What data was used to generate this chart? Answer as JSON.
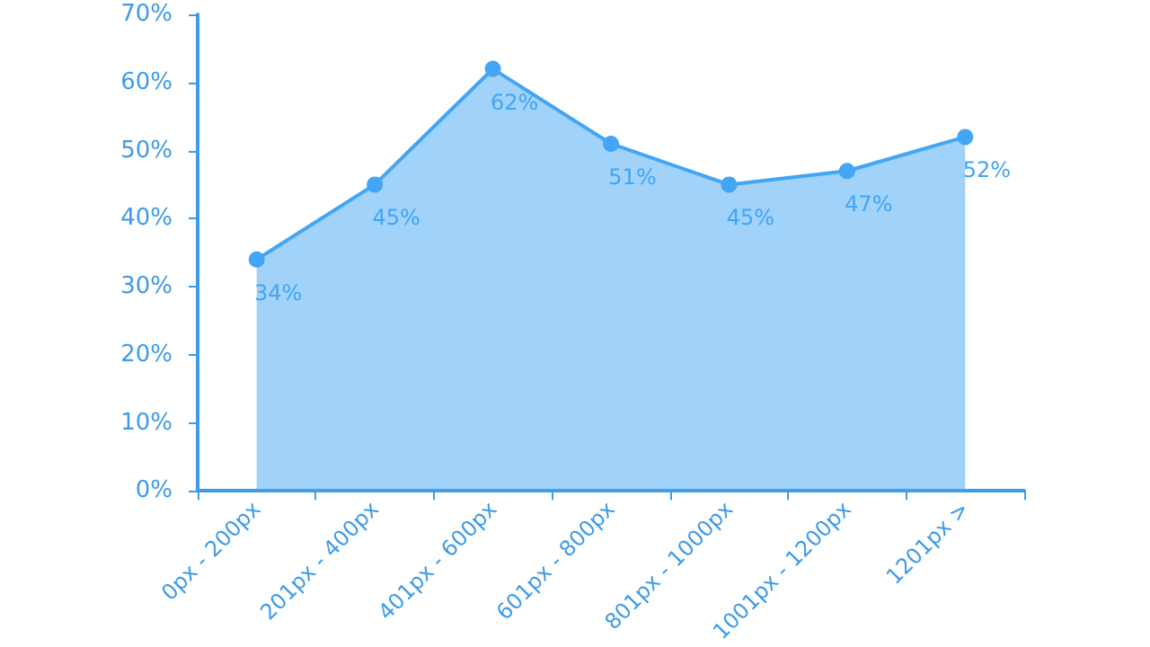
{
  "chart_data": {
    "type": "area",
    "categories": [
      "0px - 200px",
      "201px - 400px",
      "401px - 600px",
      "601px - 800px",
      "801px - 1000px",
      "1001px - 1200px",
      "1201px >"
    ],
    "series": [
      {
        "color": "#42a5f5",
        "values": [
          34,
          45,
          62,
          51,
          45,
          47,
          52
        ],
        "value_labels": [
          "34%",
          "45%",
          "62%",
          "51%",
          "45%",
          "47%",
          "52%"
        ]
      }
    ],
    "ylim": [
      0,
      70
    ],
    "yticks": [
      {
        "value": 0,
        "label": "0%"
      },
      {
        "value": 10,
        "label": "10%"
      },
      {
        "value": 20,
        "label": "20%"
      },
      {
        "value": 30,
        "label": "30%"
      },
      {
        "value": 40,
        "label": "40%"
      },
      {
        "value": 50,
        "label": "50%"
      },
      {
        "value": 60,
        "label": "60%"
      },
      {
        "value": 70,
        "label": "70%"
      }
    ],
    "marker": "circle",
    "grid": false
  }
}
